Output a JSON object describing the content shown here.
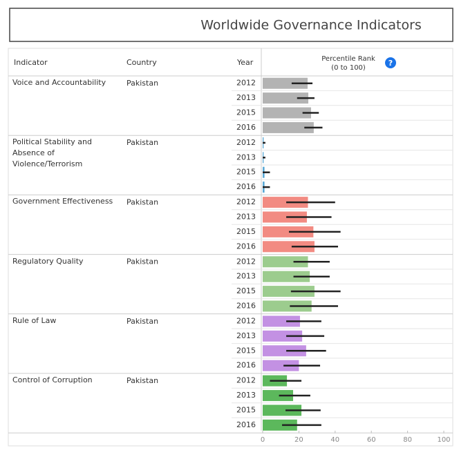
{
  "chart_data": {
    "type": "bar",
    "orientation": "horizontal",
    "title": "Worldwide Governance Indicators",
    "column_headers": [
      "Indicator",
      "Country",
      "Year"
    ],
    "value_axis_title": "Percentile Rank",
    "value_axis_subtitle": "(0 to 100)",
    "help_icon": "?",
    "xlim": [
      0,
      100
    ],
    "xticks": [
      0,
      20,
      40,
      60,
      80,
      100
    ],
    "series": [
      {
        "name": "Voice and Accountability",
        "country": "Pakistan",
        "color": "#b3b3b3",
        "categories": [
          "2012",
          "2013",
          "2015",
          "2016"
        ],
        "values": [
          24.8,
          25.2,
          26.7,
          28.2
        ],
        "error_low": [
          16,
          19,
          22,
          23
        ],
        "error_high": [
          27.5,
          28.6,
          31,
          33
        ]
      },
      {
        "name": "Political Stability and Absence of Violence/Terrorism",
        "country": "Pakistan",
        "color": "#5aa9d6",
        "categories": [
          "2012",
          "2013",
          "2015",
          "2016"
        ],
        "values": [
          0.5,
          0.5,
          1,
          1
        ],
        "error_low": [
          0,
          0,
          0,
          0
        ],
        "error_high": [
          1.5,
          1.5,
          4,
          4
        ]
      },
      {
        "name": "Government Effectiveness",
        "country": "Pakistan",
        "color": "#f28b82",
        "categories": [
          "2012",
          "2013",
          "2015",
          "2016"
        ],
        "values": [
          25,
          24.4,
          28,
          28.6
        ],
        "error_low": [
          13,
          13,
          14.5,
          16
        ],
        "error_high": [
          40,
          38,
          43,
          41.6
        ]
      },
      {
        "name": "Regulatory Quality",
        "country": "Pakistan",
        "color": "#9ccc8e",
        "categories": [
          "2012",
          "2013",
          "2015",
          "2016"
        ],
        "values": [
          25,
          26,
          28.6,
          27
        ],
        "error_low": [
          17,
          17,
          15.6,
          15
        ],
        "error_high": [
          37,
          37,
          43,
          41.6
        ]
      },
      {
        "name": "Rule of Law",
        "country": "Pakistan",
        "color": "#c391e3",
        "categories": [
          "2012",
          "2013",
          "2015",
          "2016"
        ],
        "values": [
          20.6,
          21.8,
          24,
          20
        ],
        "error_low": [
          13,
          13,
          13,
          11.5
        ],
        "error_high": [
          32.4,
          34,
          35,
          31.7
        ]
      },
      {
        "name": "Control of Corruption",
        "country": "Pakistan",
        "color": "#5cb85c",
        "categories": [
          "2012",
          "2013",
          "2015",
          "2016"
        ],
        "values": [
          13.4,
          16.8,
          21.4,
          19
        ],
        "error_low": [
          4,
          9,
          12.6,
          10.7
        ],
        "error_high": [
          21.4,
          26.3,
          32,
          32.4
        ]
      }
    ]
  }
}
